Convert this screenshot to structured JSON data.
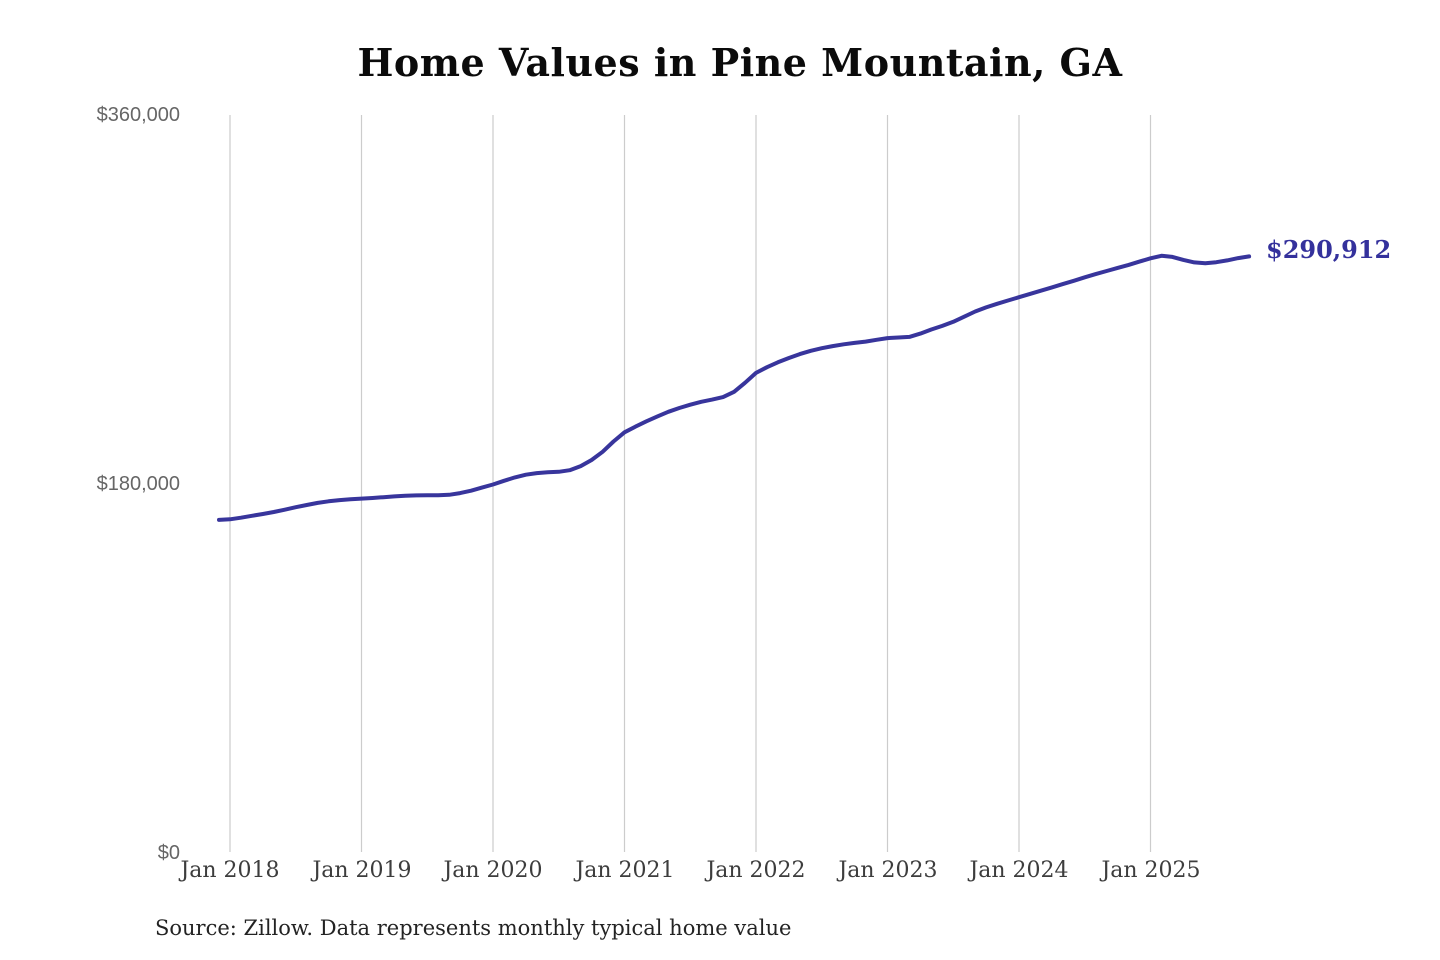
{
  "title": "Home Values in Pine Mountain, GA",
  "source_note": "Source: Zillow. Data represents monthly typical home value",
  "end_label": "$290,912",
  "colors": {
    "line": "#38359c",
    "end_label": "#34319c",
    "gridline": "#cccccc",
    "y_tick_text": "#666666",
    "x_tick_text": "#3d3d3d",
    "title_text": "#0b0b0b",
    "source_text": "#232323"
  },
  "chart_data": {
    "type": "line",
    "title": "Home Values in Pine Mountain, GA",
    "series_name": "Monthly typical home value",
    "x": [
      "2017-12",
      "2018-01",
      "2018-02",
      "2018-03",
      "2018-04",
      "2018-05",
      "2018-06",
      "2018-07",
      "2018-08",
      "2018-09",
      "2018-10",
      "2018-11",
      "2018-12",
      "2019-01",
      "2019-02",
      "2019-03",
      "2019-04",
      "2019-05",
      "2019-06",
      "2019-07",
      "2019-08",
      "2019-09",
      "2019-10",
      "2019-11",
      "2019-12",
      "2020-01",
      "2020-02",
      "2020-03",
      "2020-04",
      "2020-05",
      "2020-06",
      "2020-07",
      "2020-08",
      "2020-09",
      "2020-10",
      "2020-11",
      "2020-12",
      "2021-01",
      "2021-02",
      "2021-03",
      "2021-04",
      "2021-05",
      "2021-06",
      "2021-07",
      "2021-08",
      "2021-09",
      "2021-10",
      "2021-11",
      "2021-12",
      "2022-01",
      "2022-02",
      "2022-03",
      "2022-04",
      "2022-05",
      "2022-06",
      "2022-07",
      "2022-08",
      "2022-09",
      "2022-10",
      "2022-11",
      "2022-12",
      "2023-01",
      "2023-02",
      "2023-03",
      "2023-04",
      "2023-05",
      "2023-06",
      "2023-07",
      "2023-08",
      "2023-09",
      "2023-10",
      "2023-11",
      "2023-12",
      "2024-01",
      "2024-02",
      "2024-03",
      "2024-04",
      "2024-05",
      "2024-06",
      "2024-07",
      "2024-08",
      "2024-09",
      "2024-10",
      "2024-11",
      "2024-12",
      "2025-01",
      "2025-02",
      "2025-03",
      "2025-04",
      "2025-05",
      "2025-06",
      "2025-07",
      "2025-08",
      "2025-09",
      "2025-10"
    ],
    "values": [
      162200,
      162500,
      163300,
      164200,
      165100,
      166100,
      167200,
      168400,
      169500,
      170500,
      171300,
      171900,
      172300,
      172600,
      172900,
      173300,
      173700,
      174000,
      174200,
      174300,
      174300,
      174500,
      175300,
      176500,
      178000,
      179500,
      181300,
      183000,
      184300,
      185100,
      185500,
      185700,
      186500,
      188500,
      191500,
      195500,
      200500,
      205000,
      207800,
      210400,
      212800,
      215000,
      216900,
      218500,
      219900,
      221000,
      222200,
      224800,
      229200,
      234000,
      236800,
      239200,
      241300,
      243200,
      244800,
      246100,
      247100,
      248000,
      248700,
      249300,
      250200,
      251000,
      251300,
      251600,
      253200,
      255200,
      257000,
      259000,
      261500,
      264000,
      266000,
      267800,
      269400,
      271000,
      272600,
      274200,
      275800,
      277400,
      279000,
      280700,
      282300,
      283800,
      285300,
      286800,
      288400,
      290000,
      291200,
      290700,
      289200,
      288000,
      287600,
      288100,
      289000,
      290100,
      290912
    ],
    "x_tick_labels": [
      "Jan 2018",
      "Jan 2019",
      "Jan 2020",
      "Jan 2021",
      "Jan 2022",
      "Jan 2023",
      "Jan 2024",
      "Jan 2025"
    ],
    "y_tick_labels": [
      "$0",
      "$180,000",
      "$360,000"
    ],
    "ylim": [
      0,
      360000
    ],
    "xlabel": "",
    "ylabel": "",
    "grid": "vertical-only",
    "legend": "none",
    "end_label": "$290,912",
    "last_value": 290912,
    "line_color": "#38359c"
  }
}
